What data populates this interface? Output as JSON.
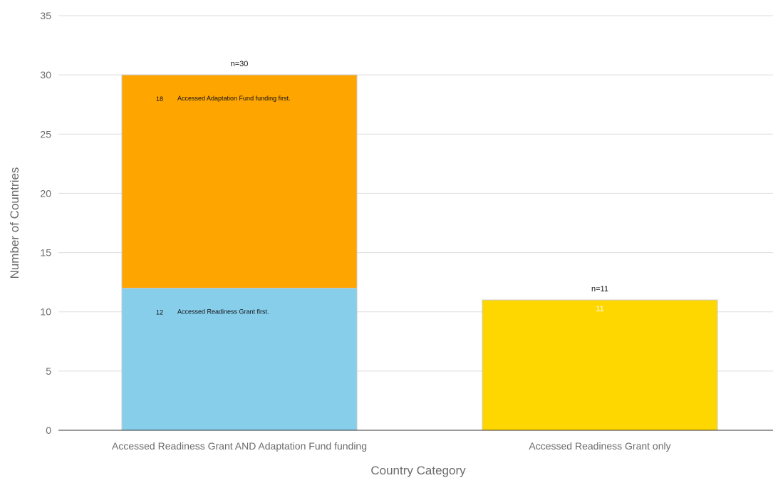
{
  "chart_data": {
    "type": "bar",
    "stacked": true,
    "categories": [
      "Accessed Readiness Grant AND Adaptation Fund funding",
      "Accessed Readiness Grant only"
    ],
    "series": [
      {
        "values": [
          12,
          0
        ],
        "color": "#87CEEB"
      },
      {
        "values": [
          18,
          0
        ],
        "color": "#FFA500"
      },
      {
        "values": [
          0,
          11
        ],
        "color": "#FFD700"
      }
    ],
    "totals": [
      "n=30",
      "n=11"
    ],
    "segment_labels": [
      {
        "count": "12",
        "text": "Accessed Readiness Grant first."
      },
      {
        "count": "18",
        "text": "Accessed Adaptation Fund funding first."
      }
    ],
    "inner_label": "11",
    "xlabel": "Country Category",
    "ylabel": "Number of Countries",
    "ylim": [
      0,
      35
    ],
    "yticks": [
      "0",
      "5",
      "10",
      "15",
      "20",
      "25",
      "30",
      "35"
    ],
    "grid": true
  }
}
